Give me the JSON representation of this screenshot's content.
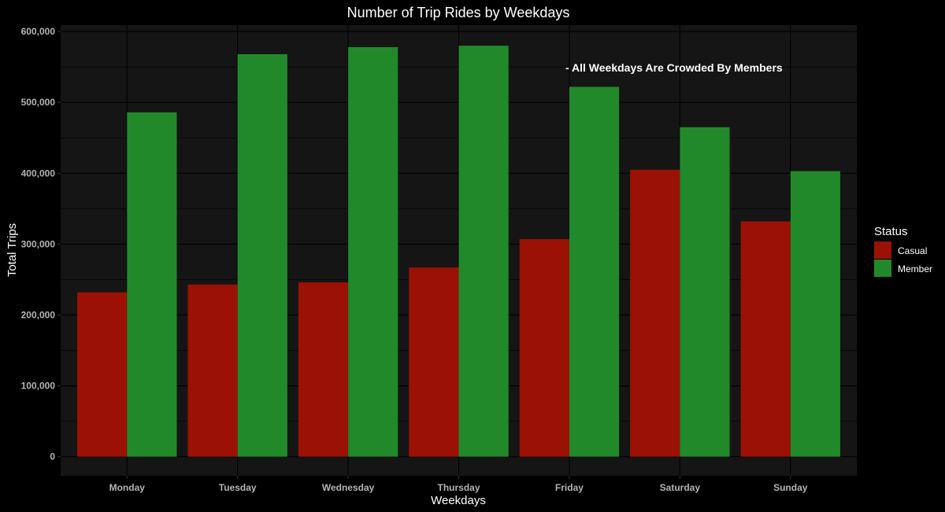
{
  "chart_data": {
    "type": "bar",
    "title": "Number of Trip Rides by Weekdays",
    "xlabel": "Weekdays",
    "ylabel": "Total Trips",
    "categories": [
      "Monday",
      "Tuesday",
      "Wednesday",
      "Thursday",
      "Friday",
      "Saturday",
      "Sunday"
    ],
    "series": [
      {
        "name": "Casual",
        "color": "#9b1105",
        "values": [
          232000,
          243000,
          246000,
          267000,
          307000,
          405000,
          332000
        ]
      },
      {
        "name": "Member",
        "color": "#21892a",
        "values": [
          486000,
          568000,
          578000,
          580000,
          522000,
          465000,
          403000
        ]
      }
    ],
    "ylim": [
      -27000,
      609000
    ],
    "yticks": [
      0,
      100000,
      200000,
      300000,
      400000,
      500000,
      600000
    ],
    "ytick_labels": [
      "0",
      "100,000",
      "200,000",
      "300,000",
      "400,000",
      "500,000",
      "600,000"
    ],
    "annotation": "- All Weekdays Are Crowded By Members",
    "legend": {
      "title": "Status",
      "position": "right"
    },
    "grid": true,
    "colors": {
      "page_background": "#000000",
      "panel_background": "#151515",
      "grid": "#000000"
    }
  }
}
